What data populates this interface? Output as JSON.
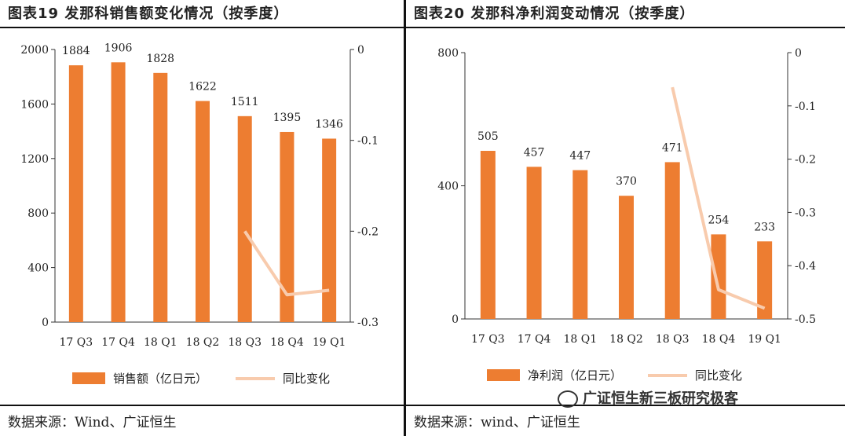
{
  "colors": {
    "bar": "#ED7D31",
    "line": "#F8CBAD",
    "axis": "#333333"
  },
  "left": {
    "title": "图表19  发那科销售额变化情况（按季度）",
    "source": "数据来源：Wind、广证恒生"
  },
  "right": {
    "title": "图表20  发那科净利润变动情况（按季度）",
    "source": "数据来源：wind、广证恒生"
  },
  "watermark": {
    "text": "广证恒生新三板研究极客",
    "icon": "wechat-icon"
  },
  "chart_data": [
    {
      "type": "bar",
      "categories": [
        "17 Q3",
        "17 Q4",
        "18 Q1",
        "18 Q2",
        "18 Q3",
        "18 Q4",
        "19 Q1"
      ],
      "series": [
        {
          "name": "销售额（亿日元）",
          "type": "bar",
          "axis": "left",
          "values": [
            1884,
            1906,
            1828,
            1622,
            1511,
            1395,
            1346
          ]
        },
        {
          "name": "同比变化",
          "type": "line",
          "axis": "right",
          "values": [
            null,
            null,
            null,
            null,
            -0.2,
            -0.27,
            -0.265
          ]
        }
      ],
      "ylim": [
        0,
        2000
      ],
      "yticks": [
        0,
        400,
        800,
        1200,
        1600,
        2000
      ],
      "y2lim": [
        -0.3,
        0
      ],
      "y2ticks": [
        0,
        -0.1,
        -0.2,
        -0.3
      ],
      "data_labels": true,
      "legend": "bottom",
      "grid": false
    },
    {
      "type": "bar",
      "categories": [
        "17 Q3",
        "17 Q4",
        "18 Q1",
        "18 Q2",
        "18 Q3",
        "18 Q4",
        "19 Q1"
      ],
      "series": [
        {
          "name": "净利润（亿日元）",
          "type": "bar",
          "axis": "left",
          "values": [
            505,
            457,
            447,
            370,
            471,
            254,
            233
          ]
        },
        {
          "name": "同比变化",
          "type": "line",
          "axis": "right",
          "values": [
            null,
            null,
            null,
            null,
            -0.065,
            -0.445,
            -0.48
          ]
        }
      ],
      "ylim": [
        0,
        800
      ],
      "yticks": [
        0,
        400,
        800
      ],
      "y2lim": [
        -0.5,
        0
      ],
      "y2ticks": [
        0,
        -0.1,
        -0.2,
        -0.3,
        -0.4,
        -0.5
      ],
      "data_labels": true,
      "legend": "bottom",
      "grid": false
    }
  ]
}
